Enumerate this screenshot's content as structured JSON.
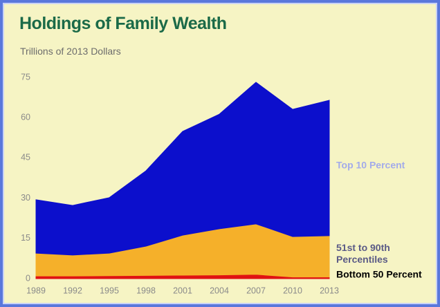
{
  "chart_data": {
    "type": "area",
    "stacked": true,
    "title": "Holdings of Family Wealth",
    "subtitle": "Trillions of 2013 Dollars",
    "x": [
      1989,
      1992,
      1995,
      1998,
      2001,
      2004,
      2007,
      2010,
      2013
    ],
    "xlim": [
      1989,
      2013
    ],
    "xticks": [
      1989,
      1992,
      1995,
      1998,
      2001,
      2004,
      2007,
      2010,
      2013
    ],
    "ylim": [
      0,
      75
    ],
    "yticks": [
      0,
      15,
      30,
      45,
      60,
      75
    ],
    "grid": false,
    "series": [
      {
        "name": "Bottom 50 Percent",
        "color": "#e01212",
        "label_color": "#000000",
        "values": [
          1.0,
          1.0,
          1.1,
          1.2,
          1.3,
          1.4,
          1.6,
          0.6,
          0.6
        ]
      },
      {
        "name": "51st to 90th Percentiles",
        "color": "#f5b02a",
        "label_color": "#5a5a86",
        "values": [
          8.5,
          7.8,
          8.4,
          10.9,
          14.9,
          17.2,
          18.8,
          15.1,
          15.4
        ]
      },
      {
        "name": "Top 10 Percent",
        "color": "#0c0fcc",
        "label_color": "#a3abea",
        "values": [
          19.9,
          18.5,
          20.7,
          28.1,
          38.7,
          42.7,
          52.8,
          47.4,
          50.5
        ]
      }
    ]
  }
}
